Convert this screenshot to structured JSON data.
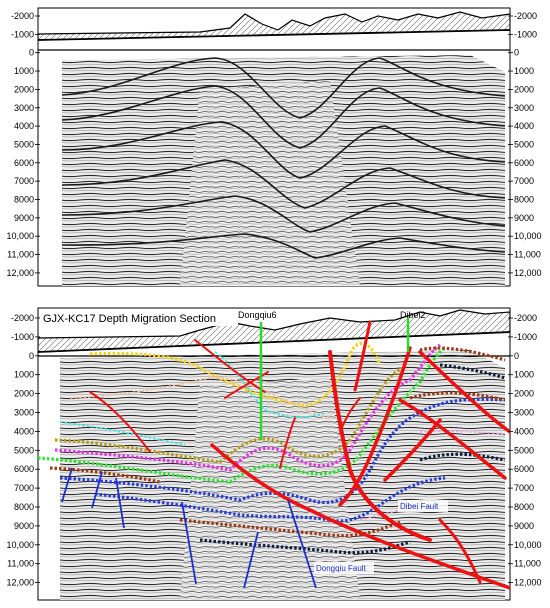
{
  "top_panel": {
    "y_ticks": [
      "-2000",
      "-1000",
      "0",
      "1000",
      "2000",
      "3000",
      "4000",
      "5000",
      "6000",
      "7000",
      "8000",
      "9000",
      "10,000",
      "11,000",
      "12,000"
    ]
  },
  "bottom_panel": {
    "title": "GJX-KC17 Depth Migration Section",
    "y_ticks": [
      "-2000",
      "-1000",
      "0",
      "1000",
      "2000",
      "3000",
      "4000",
      "5000",
      "6000",
      "7000",
      "8000",
      "9000",
      "10,000",
      "11,000",
      "12,000"
    ],
    "well_labels": {
      "dongqiu": "Dongqiu6",
      "dibei": "Dibei2"
    },
    "fault_labels": {
      "dibei": "Dibei Fault",
      "dongqiu": "Dongqiu Fault"
    }
  },
  "colors": {
    "red_faults": "#ee1111",
    "blue_faults": "#1a2fcf",
    "well": "#22dd22",
    "horizons": [
      "#f3d21a",
      "#f6b892",
      "#35e6e6",
      "#b59b1e",
      "#e236e2",
      "#2fe22f",
      "#2a3fd6",
      "#9a3b14",
      "#101f3f",
      "#f2a0e8"
    ]
  }
}
